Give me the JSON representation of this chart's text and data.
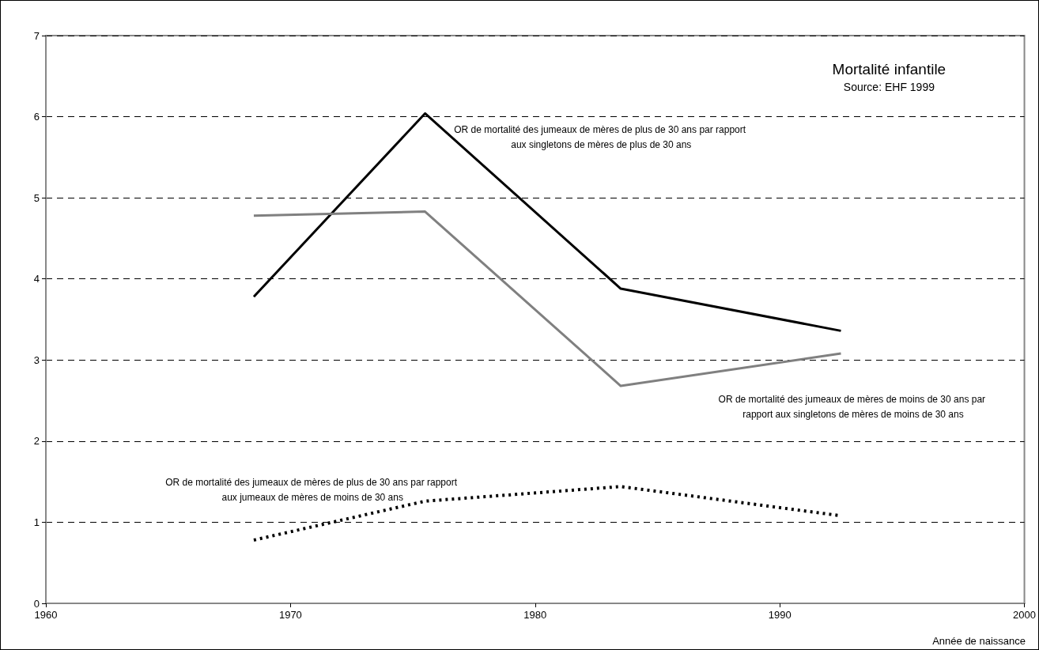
{
  "chart_data": {
    "type": "line",
    "title": "Mortalité infantile",
    "subtitle": "Source: EHF 1999",
    "xlabel": "Année de naissance",
    "x": [
      1968.5,
      1975.5,
      1983.5,
      1992.5
    ],
    "series": [
      {
        "name": "OR de mortalité des jumeaux de mères de plus de 30 ans par rapport aux singletons de mères de plus de 30 ans",
        "color": "#000000",
        "values": [
          3.78,
          6.04,
          3.88,
          3.36
        ]
      },
      {
        "name": "OR de mortalité des jumeaux de mères de moins de 30 ans par rapport aux singletons de mères de moins de 30 ans",
        "color": "#808080",
        "values": [
          4.78,
          4.83,
          2.68,
          3.08
        ]
      },
      {
        "name": "OR de mortalité des jumeaux de mères de plus de 30 ans par rapport aux jumeaux de mères de moins de 30 ans",
        "color": "#000000",
        "values": [
          0.78,
          1.26,
          1.44,
          1.08
        ],
        "line_style": "dotted"
      }
    ],
    "xlim": [
      1960,
      2000
    ],
    "xticks": [
      1960,
      1970,
      1980,
      1990,
      2000
    ],
    "ylim": [
      0,
      7
    ],
    "yticks": [
      0,
      1,
      2,
      3,
      4,
      5,
      6,
      7
    ],
    "grid": "y",
    "marker": "none",
    "line_style": "solid",
    "legend": false
  }
}
